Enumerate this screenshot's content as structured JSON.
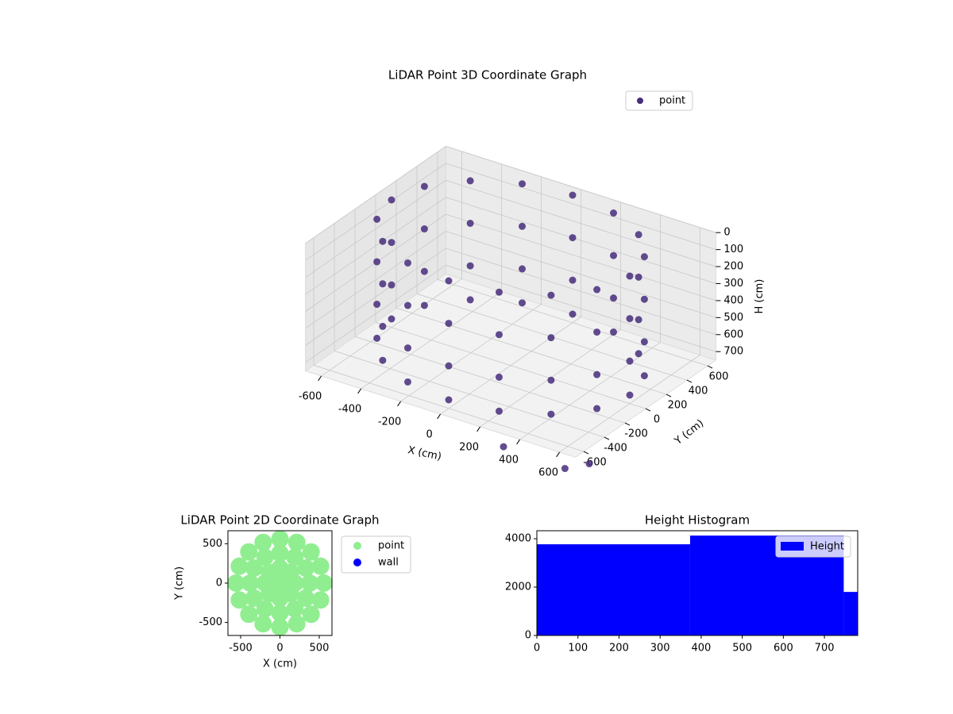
{
  "chart_data": [
    {
      "type": "scatter3d",
      "title": "LiDAR Point 3D Coordinate Graph",
      "xlabel": "X (cm)",
      "ylabel": "Y (cm)",
      "zlabel": "H (cm)",
      "xlim": [
        -680,
        680
      ],
      "ylim": [
        -680,
        680
      ],
      "zlim": [
        750,
        0
      ],
      "xticks": [
        -600,
        -400,
        -200,
        0,
        200,
        400,
        600
      ],
      "yticks": [
        -600,
        -400,
        -200,
        0,
        200,
        400,
        600
      ],
      "zticks": [
        0,
        100,
        200,
        300,
        400,
        500,
        600,
        700
      ],
      "grid": true,
      "legend": "upper right",
      "series": [
        {
          "name": "point",
          "color": "#472d7b",
          "x": [
            600,
            554,
            424,
            230,
            0,
            -230,
            -424,
            -554,
            -600,
            -554,
            -424,
            -230,
            0,
            230,
            424,
            554,
            600,
            554,
            424,
            230,
            0,
            -230,
            -424,
            -554,
            -600,
            -554,
            -424,
            -230,
            0,
            230,
            424,
            554,
            600,
            554,
            424,
            230,
            0,
            -230,
            -424,
            -554,
            -600,
            -554,
            -424,
            -230,
            0,
            230,
            424,
            554,
            600,
            554,
            424,
            230,
            0,
            -230,
            -424,
            -554,
            -600,
            -554,
            -424,
            -230,
            0,
            230,
            424,
            554,
            380,
            700,
            760
          ],
          "y": [
            0,
            230,
            424,
            554,
            600,
            554,
            424,
            230,
            0,
            -230,
            -424,
            -554,
            -600,
            -554,
            -424,
            -230,
            0,
            230,
            424,
            554,
            600,
            554,
            424,
            230,
            0,
            -230,
            -424,
            -554,
            -600,
            -554,
            -424,
            -230,
            0,
            230,
            424,
            554,
            600,
            554,
            424,
            230,
            0,
            -230,
            -424,
            -554,
            -600,
            -554,
            -424,
            -230,
            0,
            230,
            424,
            554,
            600,
            554,
            424,
            230,
            0,
            -230,
            -424,
            -554,
            -600,
            -554,
            -424,
            -230,
            -800,
            -820,
            -700
          ],
          "z": [
            0,
            0,
            0,
            0,
            0,
            0,
            0,
            0,
            0,
            0,
            0,
            0,
            0,
            0,
            0,
            0,
            250,
            250,
            250,
            250,
            250,
            250,
            250,
            250,
            250,
            250,
            250,
            250,
            250,
            250,
            250,
            250,
            500,
            500,
            500,
            500,
            500,
            500,
            500,
            500,
            500,
            500,
            500,
            500,
            500,
            500,
            500,
            500,
            700,
            700,
            700,
            700,
            700,
            700,
            700,
            700,
            700,
            700,
            700,
            700,
            700,
            700,
            700,
            700,
            750,
            750,
            750
          ]
        }
      ]
    },
    {
      "type": "scatter",
      "title": "LiDAR Point 2D Coordinate Graph",
      "xlabel": "X (cm)",
      "ylabel": "Y (cm)",
      "xlim": [
        -662,
        662
      ],
      "ylim": [
        -665,
        665
      ],
      "xticks": [
        -500,
        0,
        500
      ],
      "yticks": [
        -500,
        0,
        500
      ],
      "legend": "outside right",
      "series": [
        {
          "name": "point",
          "color": "#90ee90",
          "x": [
            560,
            517,
            396,
            214,
            0,
            -214,
            -396,
            -517,
            -560,
            -517,
            -396,
            -214,
            0,
            214,
            396,
            517,
            380,
            329,
            190,
            0,
            -190,
            -329,
            -380,
            -329,
            -190,
            0,
            190,
            329,
            190,
            134,
            0,
            -134,
            -190,
            -134,
            0,
            134,
            0
          ],
          "y": [
            0,
            214,
            396,
            517,
            560,
            517,
            396,
            214,
            0,
            -214,
            -396,
            -517,
            -560,
            -517,
            -396,
            -214,
            0,
            190,
            329,
            380,
            329,
            190,
            0,
            -190,
            -329,
            -380,
            -329,
            -190,
            0,
            134,
            190,
            134,
            0,
            -134,
            -190,
            -134,
            0
          ]
        },
        {
          "name": "wall",
          "color": "#0000ff",
          "x": [],
          "y": []
        }
      ]
    },
    {
      "type": "histogram",
      "title": "Height Histogram",
      "bins": [
        0,
        373,
        747,
        781
      ],
      "values": [
        3770,
        4130,
        1800
      ],
      "series_name": "Height",
      "color": "#0000ff",
      "xlim": [
        0,
        781
      ],
      "ylim": [
        0,
        4330
      ],
      "xticks": [
        0,
        100,
        200,
        300,
        400,
        500,
        600,
        700
      ],
      "yticks": [
        0,
        2000,
        4000
      ],
      "legend": "upper right"
    }
  ]
}
